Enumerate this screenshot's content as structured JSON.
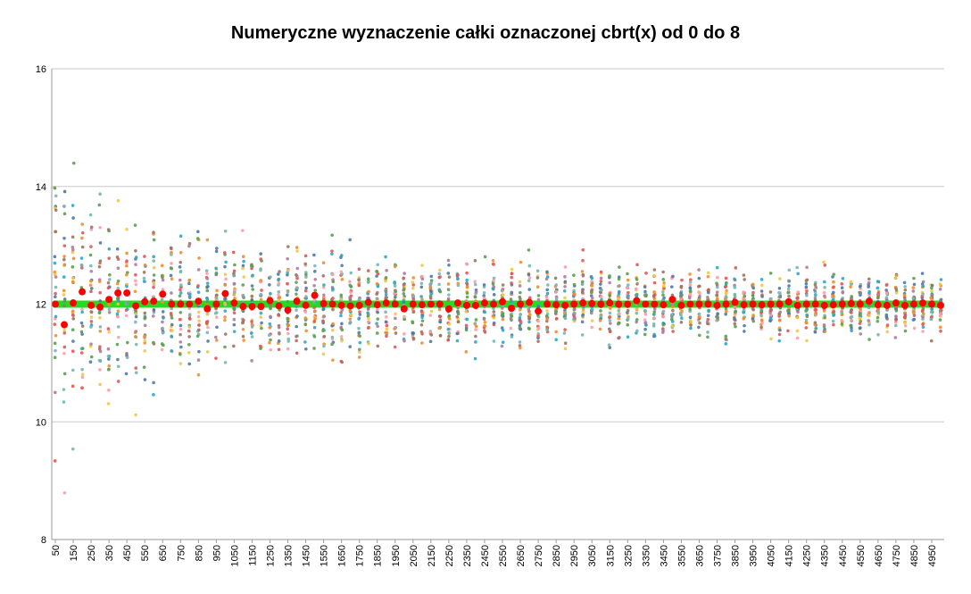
{
  "chart_data": {
    "type": "scatter",
    "title": "Numeryczne wyznaczenie całki oznaczonej cbrt(x) od 0 do 8",
    "xlabel": "",
    "ylabel": "",
    "ylim": [
      8,
      16
    ],
    "yticks": [
      8,
      10,
      12,
      14,
      16
    ],
    "grid": true,
    "x_start": 50,
    "x_step": 50,
    "x_count": 100,
    "x_tick_labels": [
      "50",
      "150",
      "250",
      "350",
      "450",
      "550",
      "650",
      "750",
      "850",
      "950",
      "1050",
      "1150",
      "1250",
      "1350",
      "1450",
      "1550",
      "1650",
      "1750",
      "1850",
      "1950",
      "2050",
      "2150",
      "2250",
      "2350",
      "2450",
      "2550",
      "2650",
      "2750",
      "2850",
      "2950",
      "3050",
      "3150",
      "3250",
      "3350",
      "3450",
      "3550",
      "3650",
      "3750",
      "3850",
      "3950",
      "4050",
      "4150",
      "4250",
      "4350",
      "4450",
      "4550",
      "4650",
      "4750",
      "4850",
      "4950"
    ],
    "exact_value": 12,
    "exact_line_color": "#22dd22",
    "mean_color": "#ff0000",
    "sample_colors": [
      "#4e79a7",
      "#f28e2b",
      "#e15759",
      "#76b7b2",
      "#59a14f",
      "#edc948",
      "#b07aa1",
      "#ff9da7",
      "#9c755f",
      "#2ca7c9"
    ],
    "samples_per_point": 25,
    "mean_values": [
      12.0,
      11.65,
      12.02,
      12.21,
      11.98,
      11.95,
      12.08,
      12.19,
      12.19,
      11.97,
      12.04,
      12.05,
      12.17,
      12.0,
      12.0,
      12.0,
      12.05,
      11.92,
      12.0,
      12.18,
      12.02,
      11.96,
      11.96,
      11.96,
      12.06,
      11.97,
      11.9,
      12.05,
      11.98,
      12.15,
      12.01,
      12.0,
      11.98,
      11.97,
      11.98,
      12.03,
      11.99,
      12.02,
      12.0,
      11.92,
      12.0,
      11.99,
      12.0,
      12.0,
      11.92,
      12.02,
      11.98,
      11.98,
      12.02,
      12.0,
      12.04,
      11.93,
      12.0,
      12.03,
      11.88,
      12.0,
      11.99,
      11.98,
      12.0,
      12.02,
      12.01,
      12.0,
      12.02,
      12.0,
      12.0,
      12.06,
      12.0,
      12.0,
      11.99,
      12.08,
      11.98,
      12.0,
      12.0,
      12.0,
      11.98,
      12.0,
      12.03,
      11.99,
      12.0,
      11.99,
      12.0,
      12.0,
      12.04,
      11.98,
      12.0,
      12.0,
      11.98,
      11.99,
      12.0,
      12.01,
      12.0,
      12.05,
      11.99,
      11.98,
      12.02,
      11.98,
      12.0,
      12.02,
      12.0,
      11.98
    ],
    "spread_values": [
      3.9,
      2.9,
      2.5,
      2.3,
      2.0,
      1.9,
      1.8,
      1.7,
      1.6,
      1.55,
      1.5,
      1.4,
      1.4,
      1.35,
      1.3,
      1.3,
      1.25,
      1.2,
      1.2,
      1.2,
      1.15,
      1.1,
      1.1,
      1.08,
      1.05,
      1.05,
      1.0,
      1.0,
      1.0,
      1.0,
      0.98,
      0.95,
      0.94,
      0.93,
      0.92,
      0.9,
      0.9,
      0.88,
      0.87,
      0.86,
      0.85,
      0.84,
      0.83,
      0.82,
      0.82,
      0.81,
      0.8,
      0.8,
      0.79,
      0.78,
      0.77,
      0.77,
      0.76,
      0.75,
      0.75,
      0.74,
      0.73,
      0.73,
      0.72,
      0.72,
      0.71,
      0.7,
      0.7,
      0.7,
      0.69,
      0.69,
      0.68,
      0.68,
      0.67,
      0.67,
      0.66,
      0.66,
      0.65,
      0.65,
      0.65,
      0.64,
      0.64,
      0.63,
      0.63,
      0.63,
      0.62,
      0.62,
      0.62,
      0.61,
      0.61,
      0.61,
      0.6,
      0.6,
      0.6,
      0.59,
      0.59,
      0.59,
      0.58,
      0.58,
      0.58,
      0.58,
      0.57,
      0.57,
      0.57,
      0.56
    ]
  }
}
